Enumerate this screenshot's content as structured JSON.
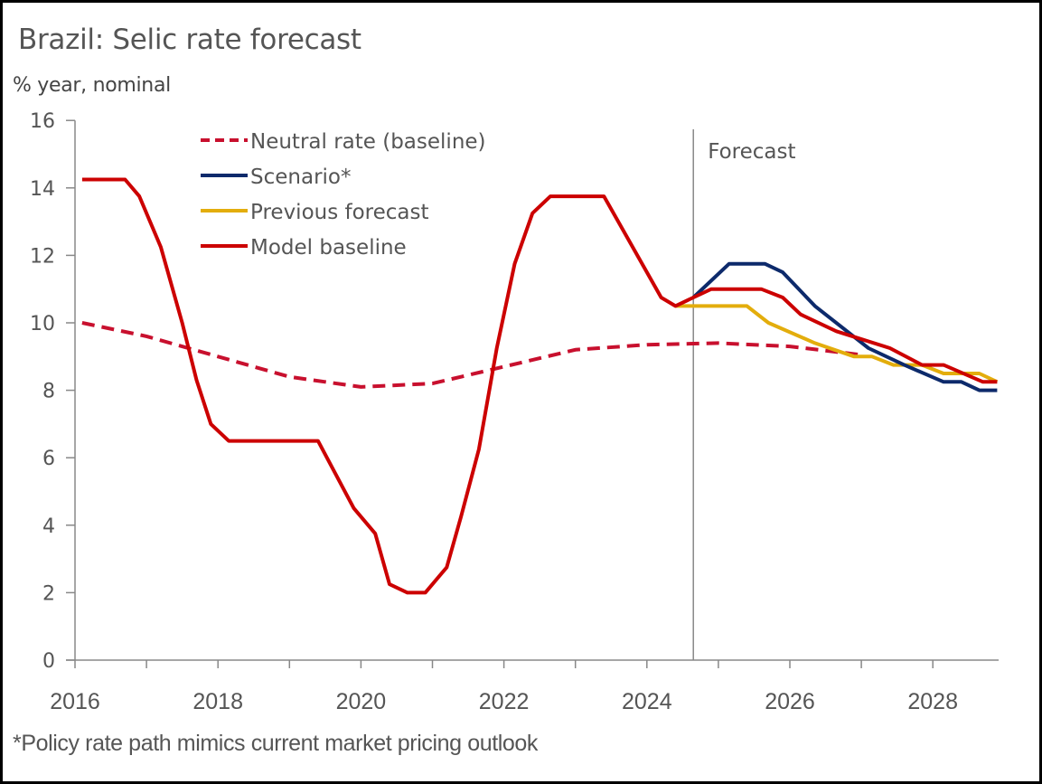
{
  "chart_data": {
    "type": "line",
    "title": "Brazil: Selic rate forecast",
    "subtitle": "% year, nominal",
    "ylabel": "% year, nominal",
    "xlabel": "",
    "ylim": [
      0,
      16
    ],
    "xlim": [
      2016,
      2029
    ],
    "yticks": [
      0,
      2,
      4,
      6,
      8,
      10,
      12,
      14,
      16
    ],
    "xtick_labels": [
      "2016",
      "2018",
      "2020",
      "2022",
      "2024",
      "2026",
      "2028"
    ],
    "xticks_minor": [
      2016,
      2017,
      2018,
      2019,
      2020,
      2021,
      2022,
      2023,
      2024,
      2025,
      2026,
      2027,
      2028
    ],
    "grid": false,
    "legend_position": "top-left",
    "annotations": [
      {
        "text": "Forecast",
        "x": 2024.65,
        "type": "vertical-line"
      }
    ],
    "footnote": "*Policy rate path mimics current market pricing outlook",
    "series": [
      {
        "name": "Neutral rate (baseline)",
        "color": "#c8102e",
        "style": "dashed",
        "x": [
          2016.1,
          2017.0,
          2018.0,
          2019.0,
          2020.0,
          2021.0,
          2022.0,
          2023.0,
          2024.0,
          2025.0,
          2026.0,
          2027.0
        ],
        "y": [
          10.0,
          9.6,
          9.0,
          8.4,
          8.1,
          8.2,
          8.7,
          9.2,
          9.35,
          9.4,
          9.3,
          9.05
        ]
      },
      {
        "name": "Scenario*",
        "color": "#0d2a6b",
        "style": "solid",
        "x": [
          2024.65,
          2025.15,
          2025.65,
          2025.9,
          2026.35,
          2027.1,
          2027.6,
          2028.15,
          2028.4,
          2028.65,
          2028.9
        ],
        "y": [
          10.75,
          11.75,
          11.75,
          11.5,
          10.5,
          9.25,
          8.75,
          8.25,
          8.25,
          8.0,
          8.0
        ]
      },
      {
        "name": "Previous forecast",
        "color": "#e3ad0c",
        "style": "solid",
        "x": [
          2024.4,
          2025.4,
          2025.7,
          2026.35,
          2026.9,
          2027.15,
          2027.45,
          2027.85,
          2028.15,
          2028.65,
          2028.9
        ],
        "y": [
          10.5,
          10.5,
          10.0,
          9.4,
          9.0,
          9.0,
          8.75,
          8.75,
          8.5,
          8.5,
          8.25
        ]
      },
      {
        "name": "Model baseline",
        "color": "#cc0000",
        "style": "solid",
        "x": [
          2016.1,
          2016.7,
          2016.9,
          2017.2,
          2017.5,
          2017.7,
          2017.9,
          2018.15,
          2019.4,
          2019.9,
          2020.2,
          2020.4,
          2020.65,
          2020.9,
          2021.2,
          2021.4,
          2021.65,
          2021.9,
          2022.15,
          2022.4,
          2022.65,
          2023.4,
          2024.2,
          2024.4,
          2024.65,
          2024.9,
          2025.6,
          2025.9,
          2026.15,
          2026.65,
          2027.4,
          2027.85,
          2028.15,
          2028.7,
          2028.9
        ],
        "y": [
          14.25,
          14.25,
          13.75,
          12.25,
          10.0,
          8.3,
          7.0,
          6.5,
          6.5,
          4.5,
          3.75,
          2.25,
          2.0,
          2.0,
          2.75,
          4.25,
          6.25,
          9.25,
          11.75,
          13.25,
          13.75,
          13.75,
          10.75,
          10.5,
          10.75,
          11.0,
          11.0,
          10.75,
          10.25,
          9.75,
          9.25,
          8.75,
          8.75,
          8.25,
          8.25
        ]
      }
    ]
  },
  "legend_order": [
    0,
    1,
    2,
    3
  ],
  "axis_color": "#888888",
  "text_color": "#555555"
}
